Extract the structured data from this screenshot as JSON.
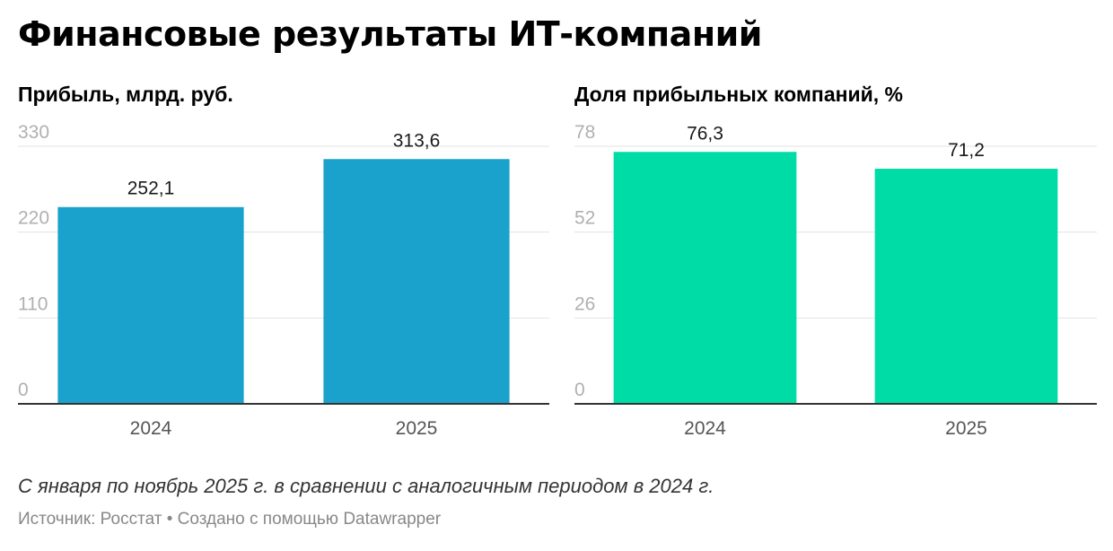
{
  "title": "Финансовые результаты ИТ-компаний",
  "chart_data": [
    {
      "type": "bar",
      "title": "Прибыль, млрд. руб.",
      "categories": [
        "2024",
        "2025"
      ],
      "values": [
        252.1,
        313.6
      ],
      "value_labels": [
        "252,1",
        "313,6"
      ],
      "yticks": [
        0,
        110,
        220,
        330
      ],
      "ylim": [
        0,
        330
      ],
      "xlabel": "",
      "ylabel": "",
      "color": "#1aa1cc"
    },
    {
      "type": "bar",
      "title": "Доля прибыльных компаний, %",
      "categories": [
        "2024",
        "2025"
      ],
      "values": [
        76.3,
        71.2
      ],
      "value_labels": [
        "76,3",
        "71,2"
      ],
      "yticks": [
        0,
        26,
        52,
        78
      ],
      "ylim": [
        0,
        78
      ],
      "xlabel": "",
      "ylabel": "",
      "color": "#00dca5"
    }
  ],
  "notes": "С января по ноябрь 2025 г. в сравнении с аналогичным периодом в 2024 г.",
  "footer": {
    "source": "Источник: Росстат",
    "separator": "•",
    "credit": "Создано с помощью Datawrapper"
  }
}
